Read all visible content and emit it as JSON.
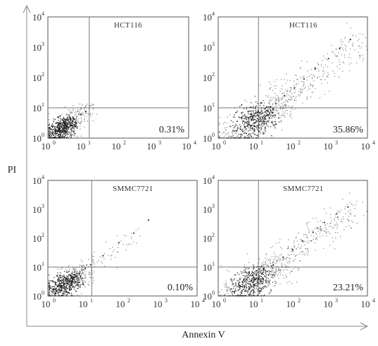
{
  "chart_data": [
    {
      "type": "scatter",
      "title": "HCT116",
      "xscale": "log",
      "yscale": "log",
      "xlim": [
        1,
        10000
      ],
      "ylim": [
        1,
        10000
      ],
      "x_ticks": [
        "10",
        "10",
        "10",
        "10",
        "10"
      ],
      "x_tick_exp": [
        "0",
        "1",
        "2",
        "3",
        "4"
      ],
      "y_ticks": [
        "10",
        "10",
        "10",
        "10",
        "10"
      ],
      "y_tick_exp": [
        "0",
        "1",
        "2",
        "3",
        "4"
      ],
      "gates": {
        "x": 15,
        "y": 10
      },
      "annotation": "0.31%",
      "cluster": {
        "x_center": 2.5,
        "y_center": 2.2,
        "spread": 0.3,
        "tail": "low"
      },
      "points": [
        [
          1.6,
          1.8
        ],
        [
          2.2,
          1.5
        ],
        [
          3.1,
          2.6
        ],
        [
          2.7,
          2.0
        ],
        [
          1.9,
          3.2
        ],
        [
          4.2,
          3.0
        ],
        [
          5.5,
          4.1
        ],
        [
          3.6,
          2.4
        ],
        [
          2.0,
          2.8
        ],
        [
          8.5,
          6.0
        ],
        [
          12.0,
          7.5
        ]
      ]
    },
    {
      "type": "scatter",
      "title": "HCT116",
      "xscale": "log",
      "yscale": "log",
      "xlim": [
        1,
        10000
      ],
      "ylim": [
        1,
        10000
      ],
      "x_ticks": [
        "10",
        "10",
        "10",
        "10",
        "10"
      ],
      "x_tick_exp": [
        "0",
        "1",
        "2",
        "3",
        "4"
      ],
      "y_ticks": [
        "10",
        "10",
        "10",
        "10",
        "10"
      ],
      "y_tick_exp": [
        "0",
        "1",
        "2",
        "3",
        "4"
      ],
      "gates": {
        "x": 12,
        "y": 10
      },
      "annotation": "35.86%",
      "cluster": {
        "x_center": 9,
        "y_center": 3.5,
        "spread": 0.45,
        "tail": "high"
      },
      "points": [
        [
          6,
          2.5
        ],
        [
          12,
          4
        ],
        [
          20,
          8
        ],
        [
          35,
          14
        ],
        [
          60,
          25
        ],
        [
          110,
          45
        ],
        [
          200,
          90
        ],
        [
          400,
          200
        ],
        [
          900,
          420
        ],
        [
          1800,
          900
        ],
        [
          3500,
          1800
        ]
      ]
    },
    {
      "type": "scatter",
      "title": "SMMC7721",
      "xscale": "log",
      "yscale": "log",
      "xlim": [
        1,
        10000
      ],
      "ylim": [
        1,
        10000
      ],
      "x_ticks": [
        "10",
        "10",
        "10",
        "10",
        "10"
      ],
      "x_tick_exp": [
        "0",
        "1",
        "2",
        "3",
        "4"
      ],
      "y_ticks": [
        "10",
        "10",
        "10",
        "10",
        "10"
      ],
      "y_tick_exp": [
        "0",
        "1",
        "2",
        "3",
        "4"
      ],
      "gates": {
        "x": 15,
        "y": 10
      },
      "annotation": "0.10%",
      "cluster": {
        "x_center": 3,
        "y_center": 2.8,
        "spread": 0.32,
        "tail": "low"
      },
      "points": [
        [
          1.8,
          2.2
        ],
        [
          2.6,
          1.9
        ],
        [
          3.5,
          3.4
        ],
        [
          4.8,
          4.2
        ],
        [
          7,
          6
        ],
        [
          10,
          9
        ],
        [
          14,
          12
        ],
        [
          30,
          25
        ],
        [
          80,
          70
        ],
        [
          200,
          150
        ],
        [
          500,
          420
        ]
      ]
    },
    {
      "type": "scatter",
      "title": "SMMC7721",
      "xscale": "log",
      "yscale": "log",
      "xlim": [
        1,
        10000
      ],
      "ylim": [
        1,
        10000
      ],
      "x_ticks": [
        "10",
        "10",
        "10",
        "10",
        "10"
      ],
      "x_tick_exp": [
        "0",
        "1",
        "2",
        "3",
        "4"
      ],
      "y_ticks": [
        "10",
        "10",
        "10",
        "10",
        "10"
      ],
      "y_tick_exp": [
        "0",
        "1",
        "2",
        "3",
        "4"
      ],
      "gates": {
        "x": 12,
        "y": 10
      },
      "annotation": "23.21%",
      "cluster": {
        "x_center": 8,
        "y_center": 3.0,
        "spread": 0.42,
        "tail": "high"
      },
      "points": [
        [
          5,
          2.2
        ],
        [
          9,
          3.2
        ],
        [
          15,
          6
        ],
        [
          30,
          12
        ],
        [
          55,
          22
        ],
        [
          100,
          40
        ],
        [
          180,
          80
        ],
        [
          350,
          160
        ],
        [
          700,
          350
        ],
        [
          1500,
          700
        ],
        [
          3000,
          1200
        ]
      ]
    }
  ],
  "axes": {
    "xlabel": "Annexin V",
    "ylabel": "PI"
  }
}
